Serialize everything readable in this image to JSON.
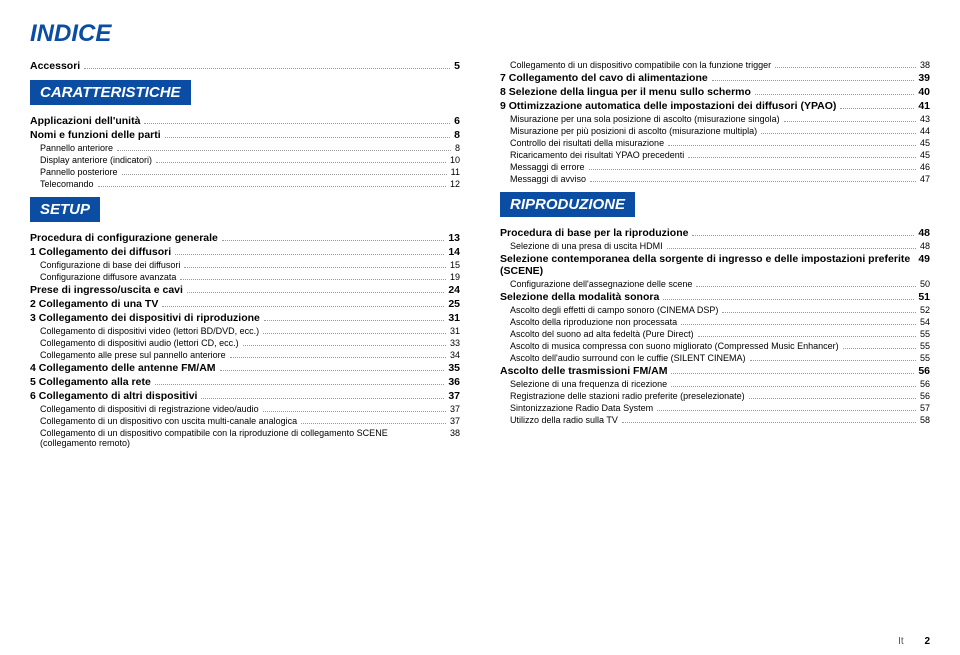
{
  "title": "INDICE",
  "footer": {
    "lang": "It",
    "page": "2"
  },
  "left": [
    {
      "type": "l1",
      "label": "Accessori",
      "page": "5"
    },
    {
      "type": "tag",
      "label": "CARATTERISTICHE"
    },
    {
      "type": "l1",
      "label": "Applicazioni dell'unità",
      "page": "6"
    },
    {
      "type": "l1",
      "label": "Nomi e funzioni delle parti",
      "page": "8"
    },
    {
      "type": "l2",
      "label": "Pannello anteriore",
      "page": "8"
    },
    {
      "type": "l2",
      "label": "Display anteriore (indicatori)",
      "page": "10"
    },
    {
      "type": "l2",
      "label": "Pannello posteriore",
      "page": "11"
    },
    {
      "type": "l2",
      "label": "Telecomando",
      "page": "12"
    },
    {
      "type": "tag",
      "label": "SETUP"
    },
    {
      "type": "l1",
      "label": "Procedura di configurazione generale",
      "page": "13"
    },
    {
      "type": "l1",
      "label": "1 Collegamento dei diffusori",
      "page": "14"
    },
    {
      "type": "l2",
      "label": "Configurazione di base dei diffusori",
      "page": "15"
    },
    {
      "type": "l2",
      "label": "Configurazione diffusore avanzata",
      "page": "19"
    },
    {
      "type": "l1",
      "label": "Prese di ingresso/uscita e cavi",
      "page": "24"
    },
    {
      "type": "l1",
      "label": "2 Collegamento di una TV",
      "page": "25"
    },
    {
      "type": "l1",
      "label": "3 Collegamento dei dispositivi di riproduzione",
      "page": "31"
    },
    {
      "type": "l2",
      "label": "Collegamento di dispositivi video (lettori BD/DVD, ecc.)",
      "page": "31"
    },
    {
      "type": "l2",
      "label": "Collegamento di dispositivi audio (lettori CD, ecc.)",
      "page": "33"
    },
    {
      "type": "l2",
      "label": "Collegamento alle prese sul pannello anteriore",
      "page": "34"
    },
    {
      "type": "l1",
      "label": "4 Collegamento delle antenne FM/AM",
      "page": "35"
    },
    {
      "type": "l1",
      "label": "5 Collegamento alla rete",
      "page": "36"
    },
    {
      "type": "l1",
      "label": "6 Collegamento di altri dispositivi",
      "page": "37"
    },
    {
      "type": "l2",
      "label": "Collegamento di dispositivi di registrazione video/audio",
      "page": "37"
    },
    {
      "type": "l2",
      "label": "Collegamento di un dispositivo con uscita multi-canale analogica",
      "page": "37"
    },
    {
      "type": "l2",
      "label": "Collegamento di un dispositivo compatibile con la riproduzione di collegamento SCENE (collegamento remoto)",
      "page": "38"
    }
  ],
  "right": [
    {
      "type": "l2",
      "label": "Collegamento di un dispositivo compatibile con la funzione trigger",
      "page": "38"
    },
    {
      "type": "l1",
      "label": "7 Collegamento del cavo di alimentazione",
      "page": "39"
    },
    {
      "type": "l1",
      "label": "8 Selezione della lingua per il menu sullo schermo",
      "page": "40"
    },
    {
      "type": "l1",
      "label": "9 Ottimizzazione automatica delle impostazioni dei diffusori (YPAO)",
      "page": "41"
    },
    {
      "type": "l2",
      "label": "Misurazione per una sola posizione di ascolto (misurazione singola)",
      "page": "43"
    },
    {
      "type": "l2",
      "label": "Misurazione per più posizioni di ascolto (misurazione multipla)",
      "page": "44"
    },
    {
      "type": "l2",
      "label": "Controllo dei risultati della misurazione",
      "page": "45"
    },
    {
      "type": "l2",
      "label": "Ricaricamento dei risultati YPAO precedenti",
      "page": "45"
    },
    {
      "type": "l2",
      "label": "Messaggi di errore",
      "page": "46"
    },
    {
      "type": "l2",
      "label": "Messaggi di avviso",
      "page": "47"
    },
    {
      "type": "tag",
      "label": "RIPRODUZIONE"
    },
    {
      "type": "l1",
      "label": "Procedura di base per la riproduzione",
      "page": "48"
    },
    {
      "type": "l2",
      "label": "Selezione di una presa di uscita HDMI",
      "page": "48"
    },
    {
      "type": "l1",
      "label": "Selezione contemporanea della sorgente di ingresso e delle impostazioni preferite (SCENE)",
      "page": "49"
    },
    {
      "type": "l2",
      "label": "Configurazione dell'assegnazione delle scene",
      "page": "50"
    },
    {
      "type": "l1",
      "label": "Selezione della modalità sonora",
      "page": "51"
    },
    {
      "type": "l2",
      "label": "Ascolto degli effetti di campo sonoro (CINEMA DSP)",
      "page": "52"
    },
    {
      "type": "l2",
      "label": "Ascolto della riproduzione non processata",
      "page": "54"
    },
    {
      "type": "l2",
      "label": "Ascolto del suono ad alta fedeltà (Pure Direct)",
      "page": "55"
    },
    {
      "type": "l2",
      "label": "Ascolto di musica compressa con suono migliorato (Compressed Music Enhancer)",
      "page": "55"
    },
    {
      "type": "l2",
      "label": "Ascolto dell'audio surround con le cuffie (SILENT CINEMA)",
      "page": "55"
    },
    {
      "type": "l1",
      "label": "Ascolto delle trasmissioni FM/AM",
      "page": "56"
    },
    {
      "type": "l2",
      "label": "Selezione di una frequenza di ricezione",
      "page": "56"
    },
    {
      "type": "l2",
      "label": "Registrazione delle stazioni radio preferite (preselezionate)",
      "page": "56"
    },
    {
      "type": "l2",
      "label": "Sintonizzazione Radio Data System",
      "page": "57"
    },
    {
      "type": "l2",
      "label": "Utilizzo della radio sulla TV",
      "page": "58"
    }
  ]
}
